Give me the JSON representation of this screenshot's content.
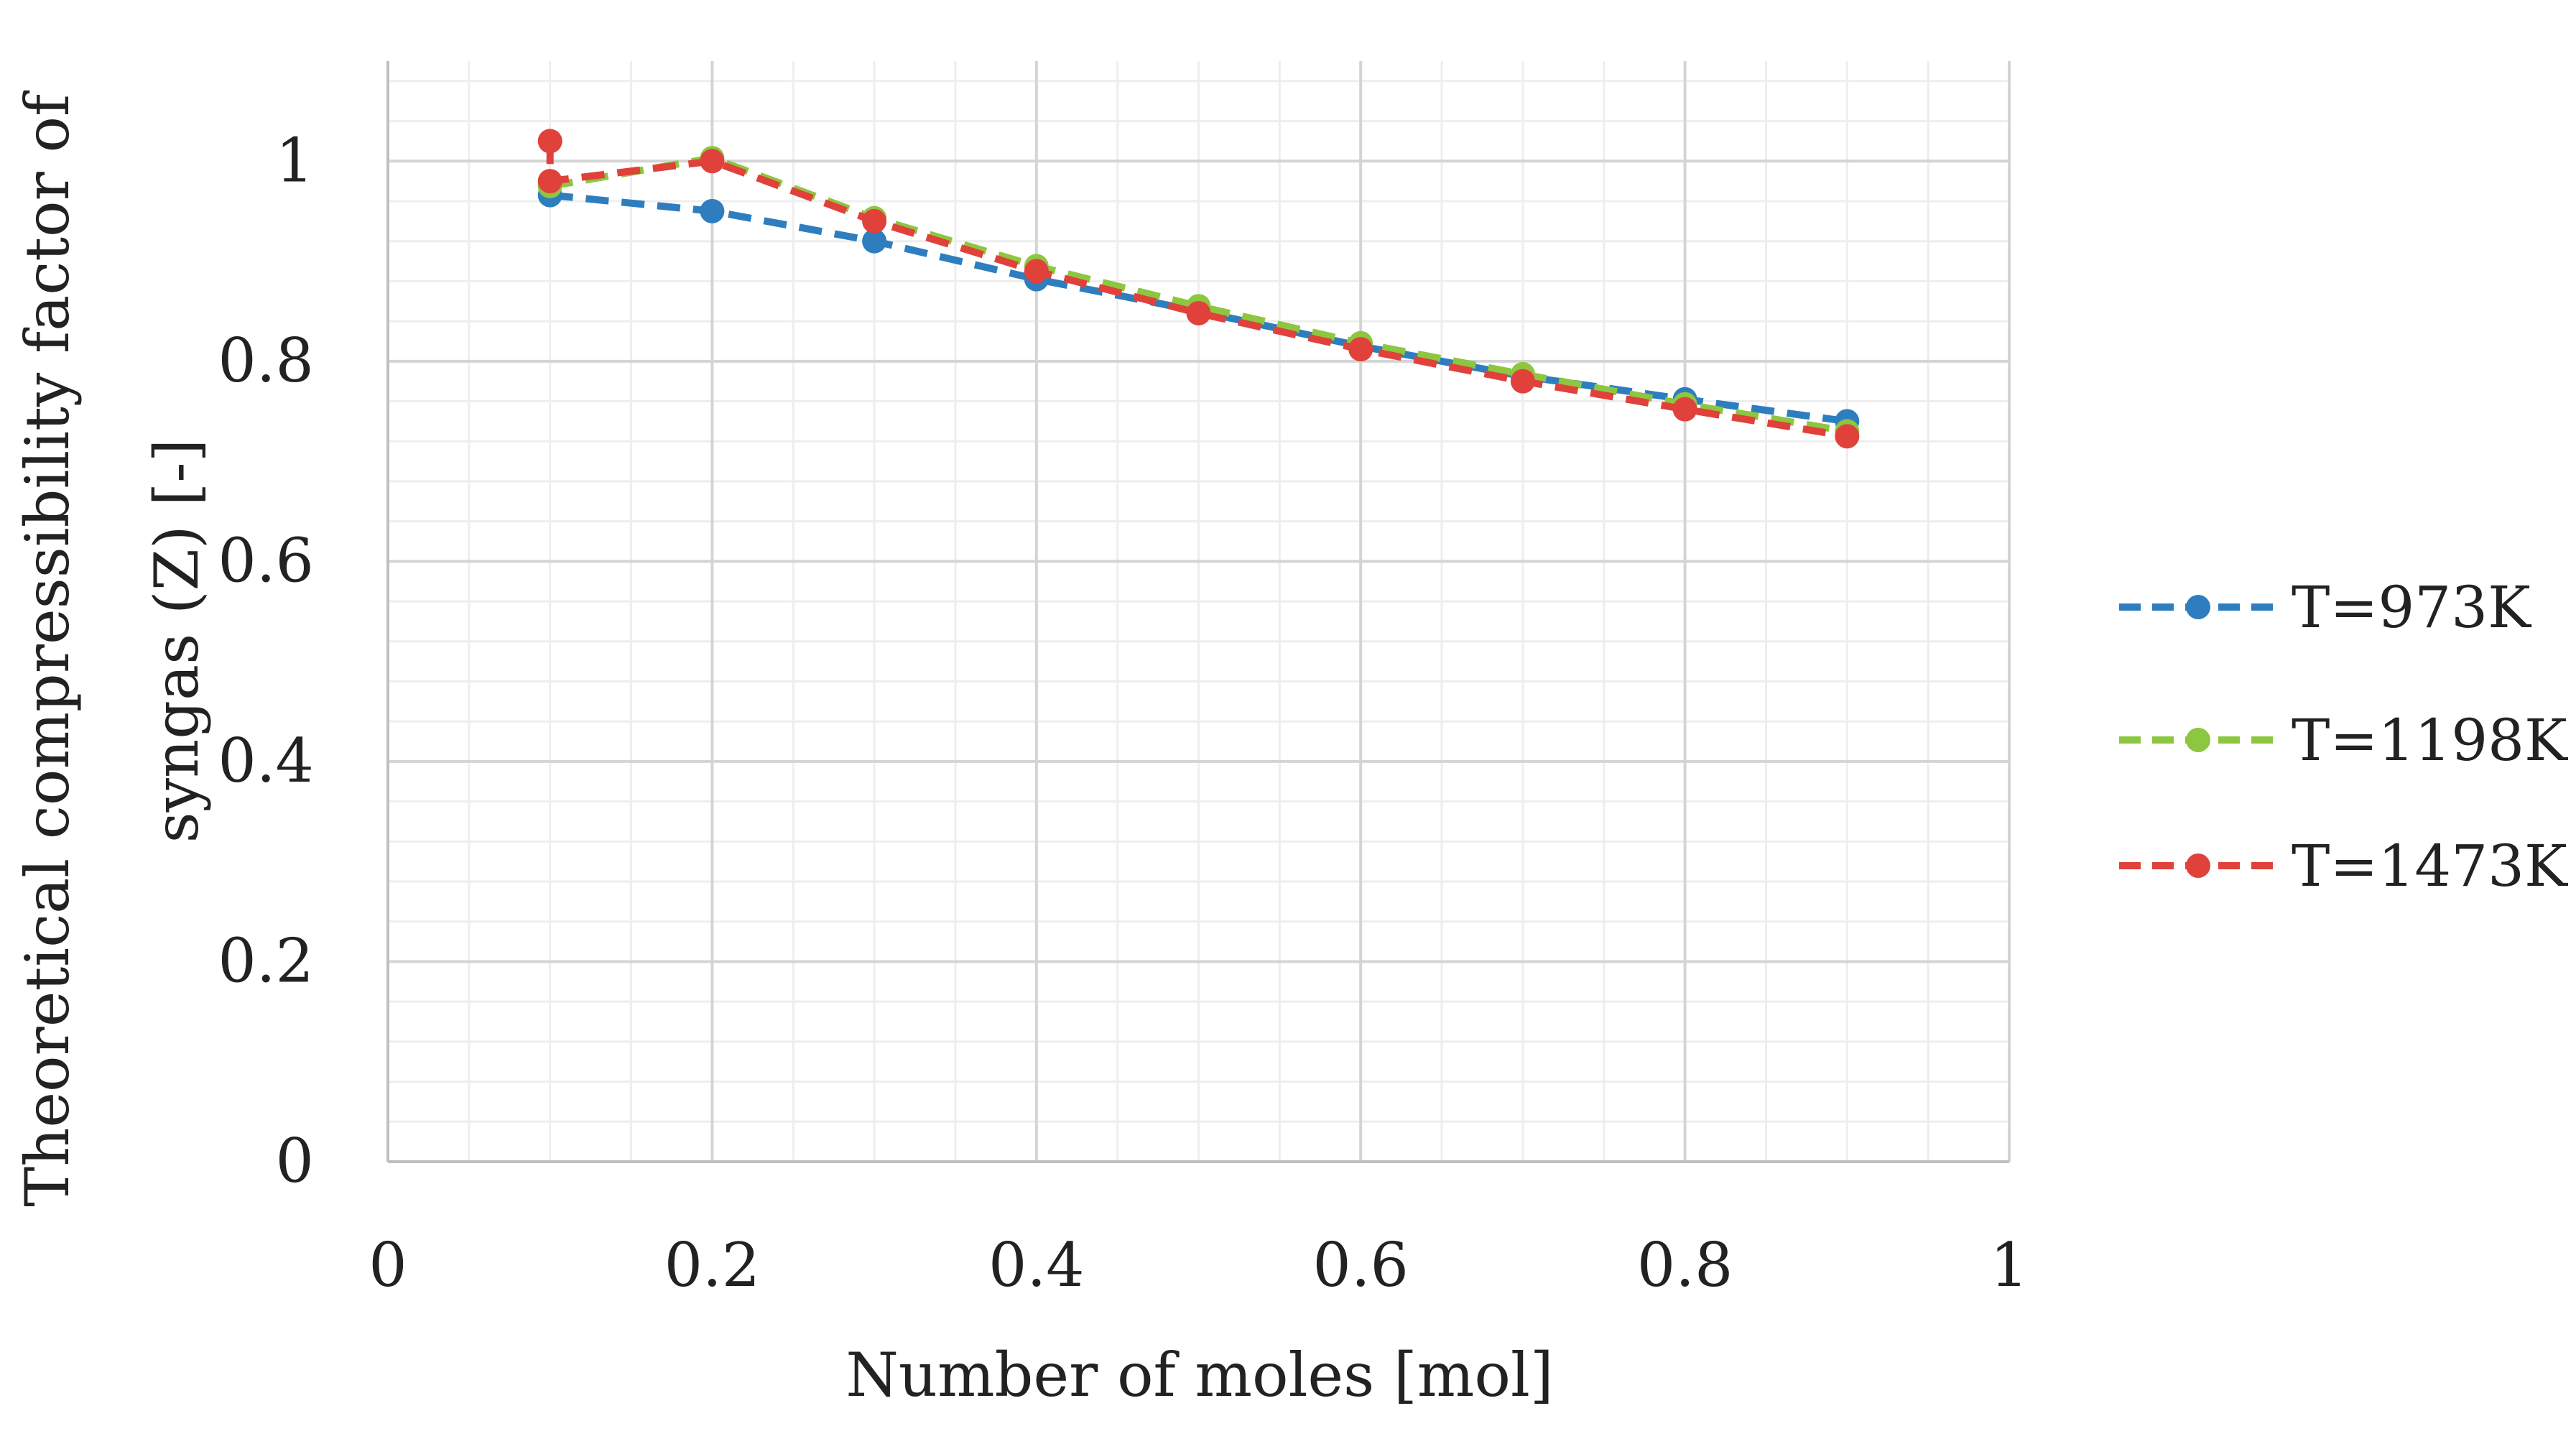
{
  "chart_data": {
    "type": "line",
    "title": "",
    "xlabel": "Number of moles [mol]",
    "ylabel": "Theoretical compressibility factor of syngas (Z) [-]",
    "ylabel_lines": [
      "Theoretical compressibility factor of",
      "syngas (Z) [-]"
    ],
    "xlim": [
      0,
      1
    ],
    "ylim": [
      0,
      1.1
    ],
    "x_ticks": [
      0,
      0.2,
      0.4,
      0.6,
      0.8,
      1
    ],
    "x_tick_labels": [
      "0",
      "0.2",
      "0.4",
      "0.6",
      "0.8",
      "1"
    ],
    "y_ticks": [
      0,
      0.2,
      0.4,
      0.6,
      0.8,
      1
    ],
    "y_tick_labels": [
      "0",
      "0.2",
      "0.4",
      "0.6",
      "0.8",
      "1"
    ],
    "grid": true,
    "legend_position": "right",
    "x": [
      0.1,
      0.2,
      0.3,
      0.4,
      0.5,
      0.6,
      0.7,
      0.8,
      0.9
    ],
    "series": [
      {
        "name": "T=973K",
        "color": "#2e7ebf",
        "values": [
          0.966,
          0.95,
          0.92,
          0.882,
          0.85,
          0.815,
          0.785,
          0.762,
          0.74
        ]
      },
      {
        "name": "T=1198K",
        "color": "#8dc63f",
        "values": [
          0.975,
          1.003,
          0.943,
          0.895,
          0.855,
          0.818,
          0.787,
          0.757,
          0.73
        ]
      },
      {
        "name": "T=1473K",
        "color": "#e0413a",
        "start_value": 1.02,
        "values": [
          0.98,
          1.0,
          0.94,
          0.89,
          0.848,
          0.812,
          0.78,
          0.752,
          0.725
        ]
      }
    ]
  }
}
